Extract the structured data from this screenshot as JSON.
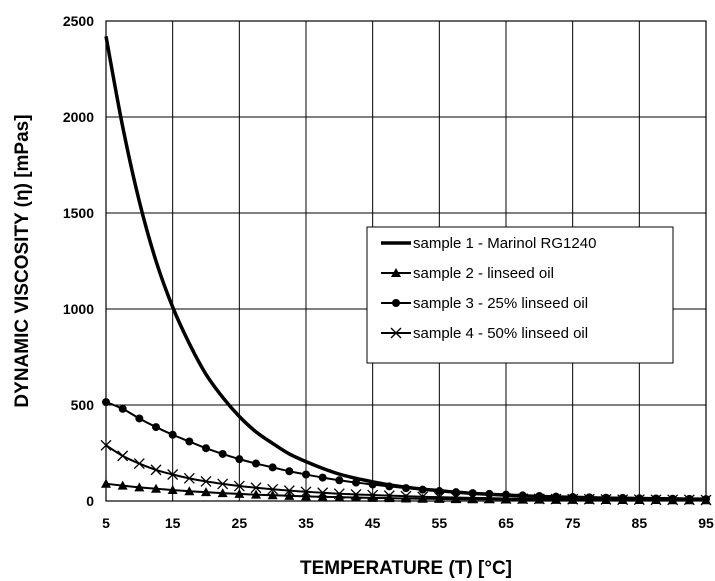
{
  "chart_data": {
    "type": "line",
    "title": "",
    "xlabel": "TEMPERATURE (T) [°C]",
    "ylabel": "DYNAMIC VISCOSITY (η) [mPas]",
    "xlim": [
      5,
      95
    ],
    "ylim": [
      0,
      2500
    ],
    "x_ticks": [
      5,
      15,
      25,
      35,
      45,
      55,
      65,
      75,
      85,
      95
    ],
    "y_ticks": [
      0,
      500,
      1000,
      1500,
      2000,
      2500
    ],
    "grid": true,
    "legend_position": "center-right",
    "x": [
      5,
      7.5,
      10,
      12.5,
      15,
      17.5,
      20,
      22.5,
      25,
      27.5,
      30,
      32.5,
      35,
      37.5,
      40,
      42.5,
      45,
      47.5,
      50,
      52.5,
      55,
      57.5,
      60,
      62.5,
      65,
      67.5,
      70,
      72.5,
      75,
      77.5,
      80,
      82.5,
      85,
      87.5,
      90,
      92.5,
      95
    ],
    "series": [
      {
        "name": "sample 1 - Marinol RG1240",
        "marker": "none",
        "values": [
          2420,
          1950,
          1560,
          1250,
          1010,
          820,
          660,
          540,
          440,
          360,
          300,
          245,
          205,
          170,
          140,
          118,
          100,
          84,
          72,
          62,
          54,
          46,
          40,
          35,
          31,
          27,
          24,
          21,
          19,
          17,
          15,
          14,
          13,
          12,
          11,
          10,
          10
        ]
      },
      {
        "name": "sample 2 - linseed oil",
        "marker": "triangle",
        "values": [
          90,
          80,
          71,
          64,
          57,
          51,
          46,
          41,
          37,
          33,
          30,
          27,
          24,
          22,
          20,
          18,
          16,
          15,
          13,
          12,
          11,
          10,
          9,
          9,
          8,
          7,
          7,
          6,
          6,
          6,
          5,
          5,
          5,
          5,
          4,
          4,
          4
        ]
      },
      {
        "name": "sample 3 - 25% linseed oil",
        "marker": "circle",
        "values": [
          515,
          480,
          430,
          385,
          345,
          310,
          275,
          245,
          218,
          195,
          175,
          155,
          138,
          122,
          108,
          96,
          86,
          76,
          67,
          59,
          52,
          46,
          41,
          37,
          33,
          29,
          26,
          23,
          21,
          19,
          17,
          16,
          14,
          13,
          12,
          11,
          10
        ]
      },
      {
        "name": "sample 4 - 50% linseed oil",
        "marker": "x",
        "values": [
          290,
          235,
          195,
          162,
          138,
          118,
          102,
          89,
          78,
          69,
          61,
          54,
          48,
          43,
          38,
          34,
          31,
          28,
          25,
          22,
          20,
          18,
          16,
          15,
          13,
          12,
          11,
          10,
          9,
          9,
          8,
          7,
          7,
          6,
          6,
          6,
          5
        ]
      }
    ]
  }
}
